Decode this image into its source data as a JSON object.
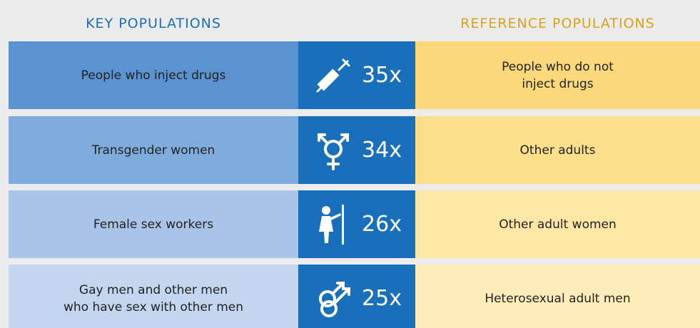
{
  "header": {
    "key": "KEY POPULATIONS",
    "reference": "REFERENCE POPULATIONS"
  },
  "rows": [
    {
      "key": [
        "People who inject drugs"
      ],
      "ratio": "35x",
      "reference": [
        "People who do not",
        "inject drugs"
      ]
    },
    {
      "key": [
        "Transgender women"
      ],
      "ratio": "34x",
      "reference": [
        "Other adults"
      ]
    },
    {
      "key": [
        "Female sex workers"
      ],
      "ratio": "26x",
      "reference": [
        "Other adult women"
      ]
    },
    {
      "key": [
        "Gay men and other men",
        "who have sex with other men"
      ],
      "ratio": "25x",
      "reference": [
        "Heterosexual adult men"
      ]
    }
  ]
}
